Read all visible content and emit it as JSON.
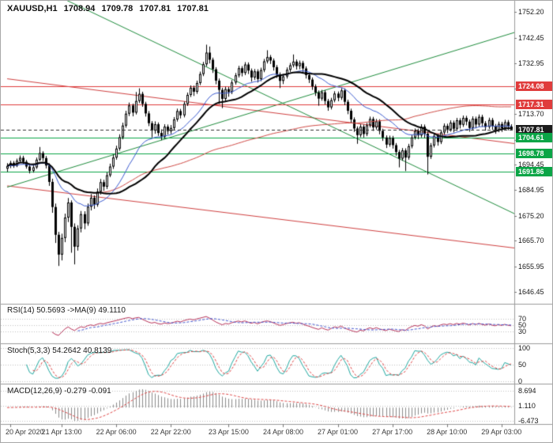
{
  "header": {
    "symbol": "XAUUSD,H1",
    "open": "1708.94",
    "high": "1709.78",
    "low": "1707.81",
    "close": "1707.81"
  },
  "price_axis": {
    "labels": [
      {
        "text": "1752.20",
        "price": 1752.2
      },
      {
        "text": "1742.45",
        "price": 1742.45
      },
      {
        "text": "1732.95",
        "price": 1732.95
      },
      {
        "text": "1723.20",
        "price": 1723.2
      },
      {
        "text": "1713.70",
        "price": 1713.7
      },
      {
        "text": "1703.95",
        "price": 1703.95
      },
      {
        "text": "1694.45",
        "price": 1694.45
      },
      {
        "text": "1684.95",
        "price": 1684.95
      },
      {
        "text": "1675.20",
        "price": 1675.2
      },
      {
        "text": "1665.70",
        "price": 1665.7
      },
      {
        "text": "1655.95",
        "price": 1655.95
      },
      {
        "text": "1646.45",
        "price": 1646.45
      }
    ]
  },
  "price_badges": [
    {
      "text": "1724.08",
      "price": 1724.08,
      "bg": "#e03c3c"
    },
    {
      "text": "1717.31",
      "price": 1717.31,
      "bg": "#e03c3c"
    },
    {
      "text": "1707.81",
      "price": 1707.81,
      "bg": "#1c1c1c"
    },
    {
      "text": "1704.61",
      "price": 1704.61,
      "bg": "#0aa546"
    },
    {
      "text": "1698.78",
      "price": 1698.78,
      "bg": "#0aa546"
    },
    {
      "text": "1691.86",
      "price": 1691.86,
      "bg": "#0aa546"
    }
  ],
  "time_axis": {
    "labels": [
      {
        "text": "20 Apr 2020",
        "bar": 1
      },
      {
        "text": "21 Apr 13:00",
        "bar": 17
      },
      {
        "text": "22 Apr 06:00",
        "bar": 34
      },
      {
        "text": "22 Apr 22:00",
        "bar": 51
      },
      {
        "text": "23 Apr 15:00",
        "bar": 69
      },
      {
        "text": "24 Apr 08:00",
        "bar": 86
      },
      {
        "text": "27 Apr 01:00",
        "bar": 103
      },
      {
        "text": "27 Apr 17:00",
        "bar": 120
      },
      {
        "text": "28 Apr 10:00",
        "bar": 137
      },
      {
        "text": "29 Apr 03:00",
        "bar": 154
      }
    ]
  },
  "indicators": {
    "rsi": {
      "title": "RSI(14) 50.5693 ->MA(9) 49.1110",
      "period": 14,
      "ma_period": 9,
      "levels": [
        {
          "text": "70",
          "value": 70
        },
        {
          "text": "50",
          "value": 50
        },
        {
          "text": "30",
          "value": 30
        }
      ]
    },
    "stoch": {
      "title": "Stoch(5,3,3) 54.2642 40.8139",
      "k_period": 5,
      "slowing": 3,
      "d_period": 3,
      "levels": [
        {
          "text": "100",
          "value": 100
        },
        {
          "text": "50",
          "value": 50
        },
        {
          "text": "0",
          "value": 0
        }
      ]
    },
    "macd": {
      "title": "MACD(12,26,9) -0.279 -0.091",
      "fast": 12,
      "slow": 26,
      "signal": 9,
      "levels": [
        {
          "text": "8.694"
        },
        {
          "text": "1.110"
        },
        {
          "text": "-6.473"
        }
      ]
    }
  },
  "chart_data": {
    "type": "candlestick",
    "symbol": "XAUUSD",
    "timeframe": "H1",
    "price_range": {
      "top": 1756.5,
      "bottom": 1641.9
    },
    "current_price": 1707.81,
    "horizontal_levels": [
      {
        "price": 1724.08,
        "color": "#e03c3c"
      },
      {
        "price": 1717.31,
        "color": "#e03c3c"
      },
      {
        "price": 1704.61,
        "color": "#0aa546"
      },
      {
        "price": 1698.78,
        "color": "#0aa546"
      },
      {
        "price": 1691.86,
        "color": "#0aa546"
      }
    ],
    "trendlines": [
      {
        "b1": 0,
        "p1": 1727.0,
        "b2": 158,
        "p2": 1702.5,
        "color": "#d04040"
      },
      {
        "b1": 0,
        "p1": 1686.5,
        "b2": 158,
        "p2": 1663.0,
        "color": "#d04040"
      },
      {
        "b1": 0,
        "p1": 1686.0,
        "b2": 158,
        "p2": 1744.5,
        "color": "#1e8c3c"
      },
      {
        "b1": 18,
        "p1": 1757.0,
        "b2": 158,
        "p2": 1676.0,
        "color": "#1e8c3c"
      }
    ],
    "moving_averages": [
      {
        "name": "ma-slow-red",
        "period": 110,
        "method": "sma",
        "color": "#d04a45",
        "width": 1
      },
      {
        "name": "ma-mid-blue",
        "period": 20,
        "method": "ema",
        "color": "#3b5bd0",
        "width": 1
      },
      {
        "name": "ma-fast-black",
        "period": 30,
        "method": "sma",
        "color": "#000000",
        "width": 2
      }
    ],
    "candles_ohlc": [
      [
        1693.0,
        1695.1,
        1691.8,
        1694.0
      ],
      [
        1694.0,
        1696.0,
        1693.2,
        1695.2
      ],
      [
        1695.2,
        1695.9,
        1693.3,
        1694.1
      ],
      [
        1694.1,
        1696.8,
        1693.6,
        1696.0
      ],
      [
        1696.0,
        1698.0,
        1695.4,
        1697.1
      ],
      [
        1697.1,
        1697.9,
        1694.8,
        1695.6
      ],
      [
        1695.6,
        1696.3,
        1693.0,
        1693.8
      ],
      [
        1693.8,
        1694.5,
        1691.2,
        1692.2
      ],
      [
        1692.2,
        1694.4,
        1691.5,
        1693.5
      ],
      [
        1693.5,
        1697.2,
        1692.9,
        1696.4
      ],
      [
        1696.4,
        1701.2,
        1695.8,
        1698.9
      ],
      [
        1698.9,
        1699.6,
        1695.9,
        1697.0
      ],
      [
        1697.0,
        1697.8,
        1693.1,
        1694.2
      ],
      [
        1694.2,
        1695.0,
        1686.5,
        1688.0
      ],
      [
        1688.0,
        1689.2,
        1676.3,
        1678.5
      ],
      [
        1678.5,
        1679.8,
        1664.9,
        1668.0
      ],
      [
        1668.0,
        1669.1,
        1656.2,
        1660.5
      ],
      [
        1660.5,
        1668.4,
        1658.3,
        1666.8
      ],
      [
        1666.8,
        1676.0,
        1665.2,
        1674.5
      ],
      [
        1674.5,
        1681.9,
        1672.8,
        1680.2
      ],
      [
        1680.2,
        1681.0,
        1661.2,
        1671.0
      ],
      [
        1671.0,
        1672.3,
        1656.8,
        1663.5
      ],
      [
        1663.5,
        1671.6,
        1662.0,
        1670.4
      ],
      [
        1670.4,
        1677.0,
        1668.9,
        1675.8
      ],
      [
        1675.8,
        1676.9,
        1670.1,
        1672.3
      ],
      [
        1672.3,
        1679.8,
        1671.4,
        1678.6
      ],
      [
        1678.6,
        1683.4,
        1677.2,
        1682.0
      ],
      [
        1682.0,
        1682.9,
        1677.8,
        1679.4
      ],
      [
        1679.4,
        1685.5,
        1678.6,
        1684.3
      ],
      [
        1684.3,
        1689.1,
        1683.2,
        1687.9
      ],
      [
        1687.9,
        1688.8,
        1684.6,
        1686.2
      ],
      [
        1686.2,
        1691.6,
        1685.3,
        1690.5
      ],
      [
        1690.5,
        1694.9,
        1689.8,
        1693.8
      ],
      [
        1693.8,
        1698.3,
        1692.9,
        1697.2
      ],
      [
        1697.2,
        1701.7,
        1696.4,
        1700.6
      ],
      [
        1700.6,
        1706.0,
        1699.8,
        1704.9
      ],
      [
        1704.9,
        1710.4,
        1704.1,
        1709.3
      ],
      [
        1709.3,
        1714.9,
        1708.5,
        1713.8
      ],
      [
        1713.8,
        1718.0,
        1712.9,
        1716.9
      ],
      [
        1716.9,
        1717.6,
        1712.8,
        1714.2
      ],
      [
        1714.2,
        1722.0,
        1713.5,
        1718.6
      ],
      [
        1718.6,
        1723.4,
        1717.8,
        1721.3
      ],
      [
        1721.3,
        1722.1,
        1716.4,
        1717.5
      ],
      [
        1717.5,
        1718.3,
        1712.7,
        1713.9
      ],
      [
        1713.9,
        1714.8,
        1709.1,
        1710.2
      ],
      [
        1710.2,
        1711.0,
        1704.8,
        1707.4
      ],
      [
        1707.4,
        1710.9,
        1706.2,
        1709.8
      ],
      [
        1709.8,
        1710.5,
        1705.4,
        1706.5
      ],
      [
        1706.5,
        1707.9,
        1703.8,
        1705.1
      ],
      [
        1705.1,
        1709.8,
        1704.3,
        1708.9
      ],
      [
        1708.9,
        1709.7,
        1705.9,
        1707.2
      ],
      [
        1707.2,
        1709.5,
        1706.1,
        1708.4
      ],
      [
        1708.4,
        1712.5,
        1707.6,
        1711.6
      ],
      [
        1711.6,
        1715.7,
        1710.8,
        1714.8
      ],
      [
        1714.8,
        1715.6,
        1712.0,
        1713.2
      ],
      [
        1713.2,
        1718.4,
        1712.4,
        1717.5
      ],
      [
        1717.5,
        1721.8,
        1716.7,
        1720.9
      ],
      [
        1720.9,
        1724.5,
        1720.1,
        1723.6
      ],
      [
        1723.6,
        1724.4,
        1720.5,
        1722.1
      ],
      [
        1722.1,
        1726.3,
        1721.3,
        1725.4
      ],
      [
        1725.4,
        1729.7,
        1724.6,
        1728.8
      ],
      [
        1728.8,
        1733.4,
        1728.0,
        1732.5
      ],
      [
        1732.5,
        1739.9,
        1731.7,
        1736.9
      ],
      [
        1736.9,
        1739.2,
        1732.8,
        1734.2
      ],
      [
        1734.2,
        1735.0,
        1729.2,
        1730.6
      ],
      [
        1730.6,
        1731.4,
        1724.9,
        1726.3
      ],
      [
        1726.3,
        1727.1,
        1717.5,
        1722.8
      ],
      [
        1722.8,
        1723.6,
        1715.9,
        1719.4
      ],
      [
        1719.4,
        1724.0,
        1718.6,
        1723.1
      ],
      [
        1723.1,
        1723.9,
        1720.2,
        1722.0
      ],
      [
        1722.0,
        1726.5,
        1721.2,
        1725.6
      ],
      [
        1725.6,
        1729.2,
        1724.8,
        1728.3
      ],
      [
        1728.3,
        1731.9,
        1727.5,
        1731.0
      ],
      [
        1731.0,
        1731.8,
        1727.9,
        1729.2
      ],
      [
        1729.2,
        1733.3,
        1728.4,
        1732.4
      ],
      [
        1732.4,
        1733.2,
        1728.8,
        1730.1
      ],
      [
        1730.1,
        1730.9,
        1725.9,
        1727.5
      ],
      [
        1727.5,
        1730.7,
        1726.6,
        1729.8
      ],
      [
        1729.8,
        1730.6,
        1725.6,
        1726.9
      ],
      [
        1726.9,
        1731.2,
        1726.1,
        1730.3
      ],
      [
        1730.3,
        1734.5,
        1729.5,
        1733.6
      ],
      [
        1733.6,
        1737.8,
        1732.8,
        1735.2
      ],
      [
        1735.2,
        1736.0,
        1732.6,
        1733.9
      ],
      [
        1733.9,
        1734.7,
        1730.1,
        1731.4
      ],
      [
        1731.4,
        1732.2,
        1727.3,
        1728.6
      ],
      [
        1728.6,
        1729.4,
        1723.5,
        1726.2
      ],
      [
        1726.2,
        1728.8,
        1725.0,
        1727.9
      ],
      [
        1727.9,
        1731.3,
        1727.1,
        1730.4
      ],
      [
        1730.4,
        1733.0,
        1729.6,
        1732.1
      ],
      [
        1732.1,
        1736.2,
        1731.3,
        1733.5
      ],
      [
        1733.5,
        1734.3,
        1730.5,
        1731.8
      ],
      [
        1731.8,
        1733.9,
        1730.6,
        1733.0
      ],
      [
        1733.0,
        1733.8,
        1729.6,
        1730.9
      ],
      [
        1730.9,
        1731.7,
        1727.1,
        1728.4
      ],
      [
        1728.4,
        1729.2,
        1725.4,
        1726.7
      ],
      [
        1726.7,
        1727.5,
        1722.8,
        1724.1
      ],
      [
        1724.1,
        1724.9,
        1720.5,
        1721.8
      ],
      [
        1721.8,
        1722.6,
        1716.8,
        1719.5
      ],
      [
        1719.5,
        1722.8,
        1718.7,
        1721.9
      ],
      [
        1721.9,
        1722.7,
        1717.3,
        1718.6
      ],
      [
        1718.6,
        1719.4,
        1714.9,
        1716.2
      ],
      [
        1716.2,
        1719.8,
        1715.4,
        1718.9
      ],
      [
        1718.9,
        1722.3,
        1718.1,
        1721.4
      ],
      [
        1721.4,
        1722.2,
        1718.5,
        1719.8
      ],
      [
        1719.8,
        1723.5,
        1719.0,
        1722.6
      ],
      [
        1722.6,
        1723.4,
        1717.0,
        1718.3
      ],
      [
        1718.3,
        1719.1,
        1713.6,
        1714.9
      ],
      [
        1714.9,
        1715.7,
        1710.3,
        1711.6
      ],
      [
        1711.6,
        1712.4,
        1706.9,
        1708.2
      ],
      [
        1708.2,
        1709.0,
        1702.4,
        1705.7
      ],
      [
        1705.7,
        1709.8,
        1704.9,
        1708.9
      ],
      [
        1708.9,
        1709.7,
        1704.8,
        1706.1
      ],
      [
        1706.1,
        1710.3,
        1705.3,
        1709.4
      ],
      [
        1709.4,
        1712.7,
        1708.6,
        1711.8
      ],
      [
        1711.8,
        1712.6,
        1707.3,
        1708.6
      ],
      [
        1708.6,
        1711.8,
        1707.8,
        1710.9
      ],
      [
        1710.9,
        1711.7,
        1706.0,
        1707.3
      ],
      [
        1707.3,
        1708.1,
        1703.5,
        1704.8
      ],
      [
        1704.8,
        1705.6,
        1700.8,
        1702.1
      ],
      [
        1702.1,
        1705.5,
        1701.3,
        1704.6
      ],
      [
        1704.6,
        1705.4,
        1700.6,
        1701.9
      ],
      [
        1701.9,
        1702.7,
        1697.9,
        1699.3
      ],
      [
        1699.3,
        1700.1,
        1693.5,
        1696.8
      ],
      [
        1696.8,
        1700.8,
        1696.0,
        1699.9
      ],
      [
        1699.9,
        1700.7,
        1692.1,
        1697.2
      ],
      [
        1697.2,
        1702.4,
        1696.4,
        1701.5
      ],
      [
        1701.5,
        1705.7,
        1700.7,
        1704.8
      ],
      [
        1704.8,
        1708.2,
        1704.0,
        1707.3
      ],
      [
        1707.3,
        1708.1,
        1704.2,
        1705.6
      ],
      [
        1705.6,
        1709.8,
        1704.8,
        1708.9
      ],
      [
        1708.9,
        1709.7,
        1704.6,
        1706.2
      ],
      [
        1706.2,
        1707.0,
        1690.8,
        1697.5
      ],
      [
        1697.5,
        1702.7,
        1696.7,
        1701.8
      ],
      [
        1701.8,
        1706.3,
        1701.0,
        1705.4
      ],
      [
        1705.4,
        1706.2,
        1701.7,
        1703.1
      ],
      [
        1703.1,
        1707.6,
        1702.3,
        1706.7
      ],
      [
        1706.7,
        1710.1,
        1705.9,
        1709.2
      ],
      [
        1709.2,
        1710.0,
        1706.4,
        1707.8
      ],
      [
        1707.8,
        1711.3,
        1707.0,
        1710.4
      ],
      [
        1710.4,
        1711.2,
        1706.7,
        1708.1
      ],
      [
        1708.1,
        1712.2,
        1707.3,
        1711.3
      ],
      [
        1711.3,
        1712.1,
        1708.2,
        1709.6
      ],
      [
        1709.6,
        1713.1,
        1708.8,
        1712.2
      ],
      [
        1712.2,
        1713.0,
        1709.4,
        1710.8
      ],
      [
        1710.8,
        1711.6,
        1707.0,
        1708.4
      ],
      [
        1708.4,
        1712.8,
        1707.6,
        1711.9
      ],
      [
        1711.9,
        1712.7,
        1708.3,
        1709.7
      ],
      [
        1709.7,
        1713.5,
        1708.9,
        1712.6
      ],
      [
        1712.6,
        1713.4,
        1708.8,
        1710.2
      ],
      [
        1710.2,
        1711.0,
        1707.4,
        1708.8
      ],
      [
        1708.8,
        1712.3,
        1708.0,
        1711.4
      ],
      [
        1711.4,
        1712.2,
        1707.7,
        1709.1
      ],
      [
        1709.1,
        1709.9,
        1706.2,
        1707.6
      ],
      [
        1707.6,
        1710.8,
        1706.8,
        1709.9
      ],
      [
        1709.9,
        1710.7,
        1706.9,
        1708.3
      ],
      [
        1708.3,
        1711.5,
        1707.5,
        1710.6
      ],
      [
        1710.6,
        1711.4,
        1707.5,
        1708.9
      ],
      [
        1708.9,
        1709.8,
        1707.8,
        1707.8
      ]
    ],
    "sub_indicators": {
      "rsi": {
        "type": "line",
        "params": "RSI(14), MA(9)",
        "last_values": [
          50.5693,
          49.111
        ],
        "axis": [
          70,
          50,
          30
        ]
      },
      "stochastic": {
        "type": "line",
        "params": "Stoch(5,3,3)",
        "last_values": [
          54.2642,
          40.8139
        ],
        "axis": [
          100,
          50,
          0
        ]
      },
      "macd": {
        "type": "histogram+line",
        "params": "MACD(12,26,9)",
        "last_values": [
          -0.279,
          -0.091
        ],
        "axis": [
          8.694,
          1.11,
          -6.473
        ]
      }
    }
  },
  "colors": {
    "background": "#ffffff",
    "bull_candle": "#ffffff",
    "bear_candle": "#000000",
    "wick": "#000000",
    "level_red": "#e03c3c",
    "level_green": "#0aa546",
    "current_price_badge": "#1c1c1c",
    "rsi_line": "#b8335a",
    "rsi_ma_line": "#4558d0",
    "stoch_k_line": "#1fa8a0",
    "stoch_d_line": "#e04848",
    "macd_histogram": "#8c8c8c",
    "macd_signal": "#e04848",
    "divider": "#9a9a9a",
    "grid_dotted": "#c0c0c0"
  }
}
